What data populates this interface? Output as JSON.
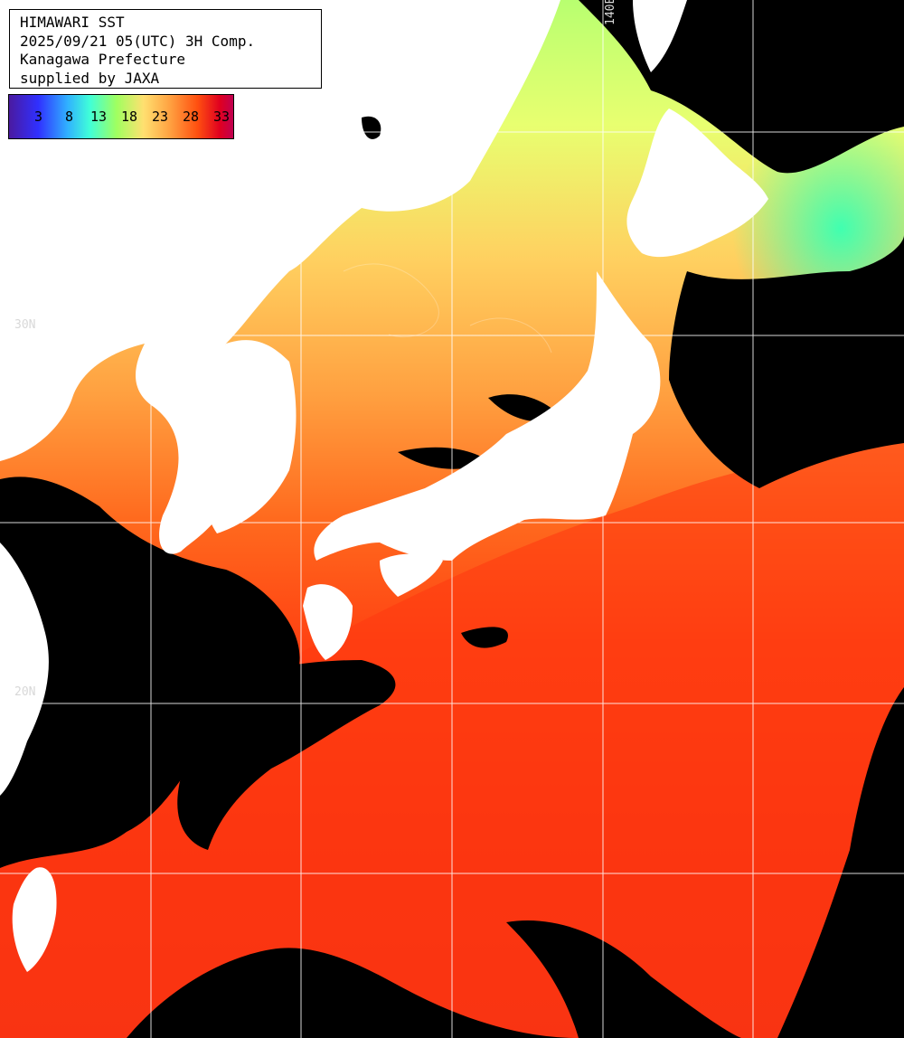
{
  "title_lines": [
    "HIMAWARI SST",
    "2025/09/21 05(UTC) 3H Comp.",
    "Kanagawa Prefecture",
    "supplied by JAXA"
  ],
  "legend": {
    "ticks": [
      "3",
      "8",
      "13",
      "18",
      "23",
      "28",
      "33"
    ]
  },
  "grid_labels": {
    "left_upper": "30N",
    "left_lower": "20N",
    "top_right": "140E"
  },
  "colors": {
    "land": "#ffffff",
    "cloud": "#000000",
    "grid": "#ffffff",
    "sst_cold": "#a0ff70",
    "sst_mid": "#ffb050",
    "sst_warm": "#ff3a10",
    "sst_hot": "#e01018"
  }
}
